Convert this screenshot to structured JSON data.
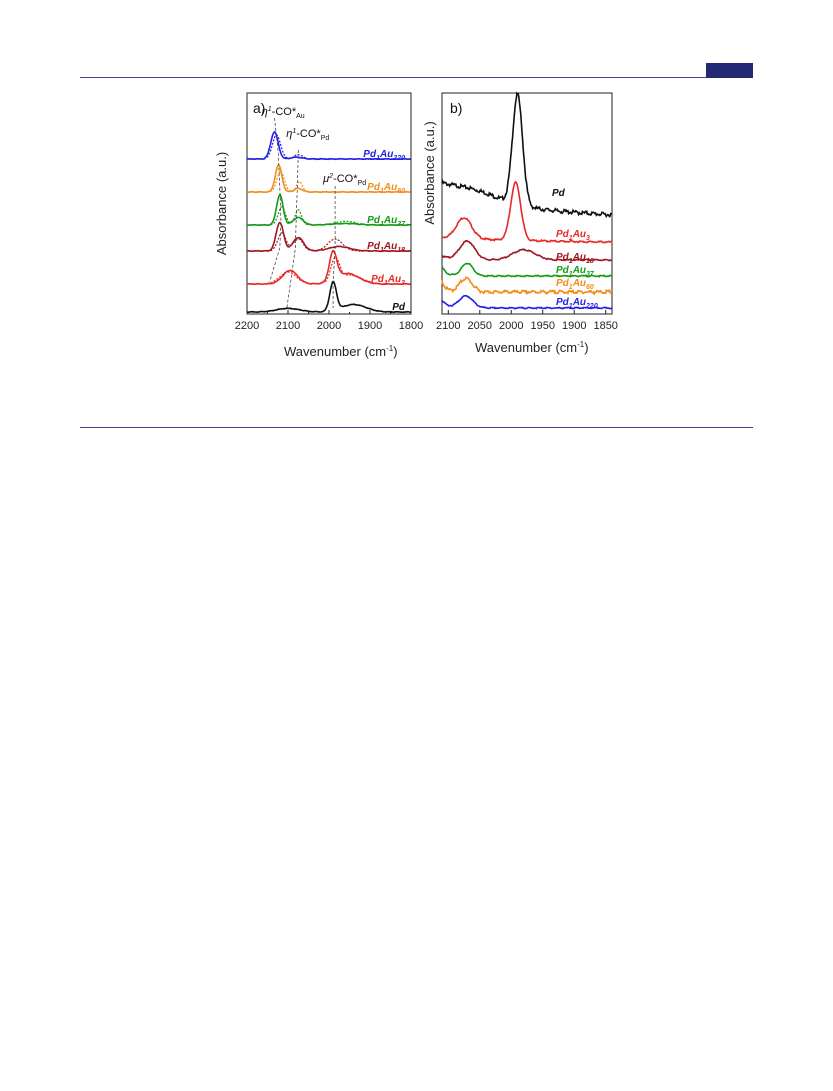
{
  "chart_data": [
    {
      "type": "line",
      "panel_label": "a)",
      "xlabel": "Wavenumber (cm-1)",
      "ylabel": "Absorbance (a.u.)",
      "xlim": [
        2200,
        1800
      ],
      "x_reversed": true,
      "x_ticks": [
        2200,
        2100,
        2000,
        1900,
        1800
      ],
      "annotations": [
        {
          "main": "η1-CO*",
          "sub": "Au",
          "position_x_data": 2135
        },
        {
          "main": "η1-CO*",
          "sub": "Pd",
          "position_x_data": 2075
        },
        {
          "main": "μ2-CO*",
          "sub": "Pd",
          "position_x_data": 1985
        }
      ],
      "series": [
        {
          "name": "Pd1Au220",
          "label_main": "Pd",
          "label_sub1": "1",
          "label_mid": "Au",
          "label_sub2": "220",
          "color": "#1f1fe8",
          "solid_peaks": [
            [
              2133,
              0.9,
              9
            ],
            [
              2080,
              0.06,
              14
            ]
          ],
          "dotted_peaks": [
            [
              2128,
              0.8,
              10
            ],
            [
              2075,
              0.15,
              10
            ]
          ]
        },
        {
          "name": "Pd1Au60",
          "label_main": "Pd",
          "label_sub1": "1",
          "label_mid": "Au",
          "label_sub2": "60",
          "color": "#f28c1a",
          "solid_peaks": [
            [
              2123,
              0.9,
              8
            ],
            [
              2075,
              0.12,
              10
            ]
          ],
          "dotted_peaks": [
            [
              2118,
              0.7,
              9
            ],
            [
              2072,
              0.35,
              7
            ]
          ]
        },
        {
          "name": "Pd1Au37",
          "label_main": "Pd",
          "label_sub1": "1",
          "label_mid": "Au",
          "label_sub2": "37",
          "color": "#159a15",
          "solid_peaks": [
            [
              2120,
              1.0,
              8
            ],
            [
              2075,
              0.25,
              12
            ],
            [
              1960,
              0.05,
              30
            ]
          ],
          "dotted_peaks": [
            [
              2115,
              0.6,
              9
            ],
            [
              2075,
              0.5,
              8
            ],
            [
              1960,
              0.12,
              25
            ]
          ]
        },
        {
          "name": "Pd1Au18",
          "label_main": "Pd",
          "label_sub1": "1",
          "label_mid": "Au",
          "label_sub2": "18",
          "color": "#a01820",
          "solid_peaks": [
            [
              2120,
              0.95,
              9
            ],
            [
              2075,
              0.45,
              13
            ],
            [
              1975,
              0.15,
              25
            ]
          ],
          "dotted_peaks": [
            [
              2115,
              0.6,
              10
            ],
            [
              2075,
              0.4,
              12
            ],
            [
              1985,
              0.4,
              18
            ]
          ]
        },
        {
          "name": "Pd1Au3",
          "label_main": "Pd",
          "label_sub1": "1",
          "label_mid": "Au",
          "label_sub2": "3",
          "color": "#e82828",
          "solid_peaks": [
            [
              2095,
              0.45,
              18
            ],
            [
              1990,
              0.95,
              9
            ],
            [
              1955,
              0.35,
              28
            ]
          ],
          "dotted_peaks": [
            [
              2100,
              0.4,
              20
            ],
            [
              1985,
              0.75,
              10
            ],
            [
              1950,
              0.3,
              30
            ]
          ]
        },
        {
          "name": "Pd",
          "label_main": "Pd",
          "label_sub1": "",
          "label_mid": "",
          "label_sub2": "",
          "color": "#111111",
          "solid_peaks": [
            [
              2100,
              0.12,
              28
            ],
            [
              1990,
              0.95,
              8
            ],
            [
              1940,
              0.25,
              30
            ]
          ],
          "dotted_peaks": []
        }
      ]
    },
    {
      "type": "line",
      "panel_label": "b)",
      "xlabel": "Wavenumber (cm-1)",
      "ylabel": "Absorbance (a.u.)",
      "xlim": [
        2110,
        1840
      ],
      "x_reversed": true,
      "x_ticks": [
        2100,
        2050,
        2000,
        1950,
        1900,
        1850
      ],
      "series": [
        {
          "name": "Pd",
          "label_main": "Pd",
          "label_sub1": "",
          "label_mid": "",
          "label_sub2": "",
          "color": "#111111",
          "baseline": 0.22,
          "decay": [
            0.1,
            60
          ],
          "peaks": [
            [
              1990,
              1.0,
              8
            ],
            [
              2060,
              0.08,
              40
            ]
          ]
        },
        {
          "name": "Pd1Au3",
          "label_main": "Pd",
          "label_sub1": "1",
          "label_mid": "Au",
          "label_sub2": "3",
          "color": "#e82828",
          "baseline": 0.06,
          "decay": [
            0.0,
            30
          ],
          "peaks": [
            [
              1993,
              0.55,
              8
            ],
            [
              2075,
              0.2,
              12
            ]
          ]
        },
        {
          "name": "Pd1Au18",
          "label_main": "Pd",
          "label_sub1": "1",
          "label_mid": "Au",
          "label_sub2": "18",
          "color": "#a01820",
          "baseline": 0.0,
          "decay": [
            0.05,
            12
          ],
          "peaks": [
            [
              2070,
              0.22,
              12
            ],
            [
              1980,
              0.12,
              18
            ]
          ]
        },
        {
          "name": "Pd1Au37",
          "label_main": "Pd",
          "label_sub1": "1",
          "label_mid": "Au",
          "label_sub2": "37",
          "color": "#159a15",
          "baseline": 0.0,
          "decay": [
            0.12,
            7
          ],
          "peaks": [
            [
              2070,
              0.16,
              9
            ]
          ]
        },
        {
          "name": "Pd1Au60",
          "label_main": "Pd",
          "label_sub1": "1",
          "label_mid": "Au",
          "label_sub2": "60",
          "color": "#f28c1a",
          "baseline": 0.0,
          "decay": [
            0.14,
            6
          ],
          "peaks": [
            [
              2072,
              0.17,
              10
            ]
          ]
        },
        {
          "name": "Pd1Au220",
          "label_main": "Pd",
          "label_sub1": "1",
          "label_mid": "Au",
          "label_sub2": "220",
          "color": "#1f1fe8",
          "baseline": 0.0,
          "decay": [
            0.1,
            8
          ],
          "peaks": [
            [
              2072,
              0.15,
              11
            ]
          ]
        }
      ]
    }
  ]
}
